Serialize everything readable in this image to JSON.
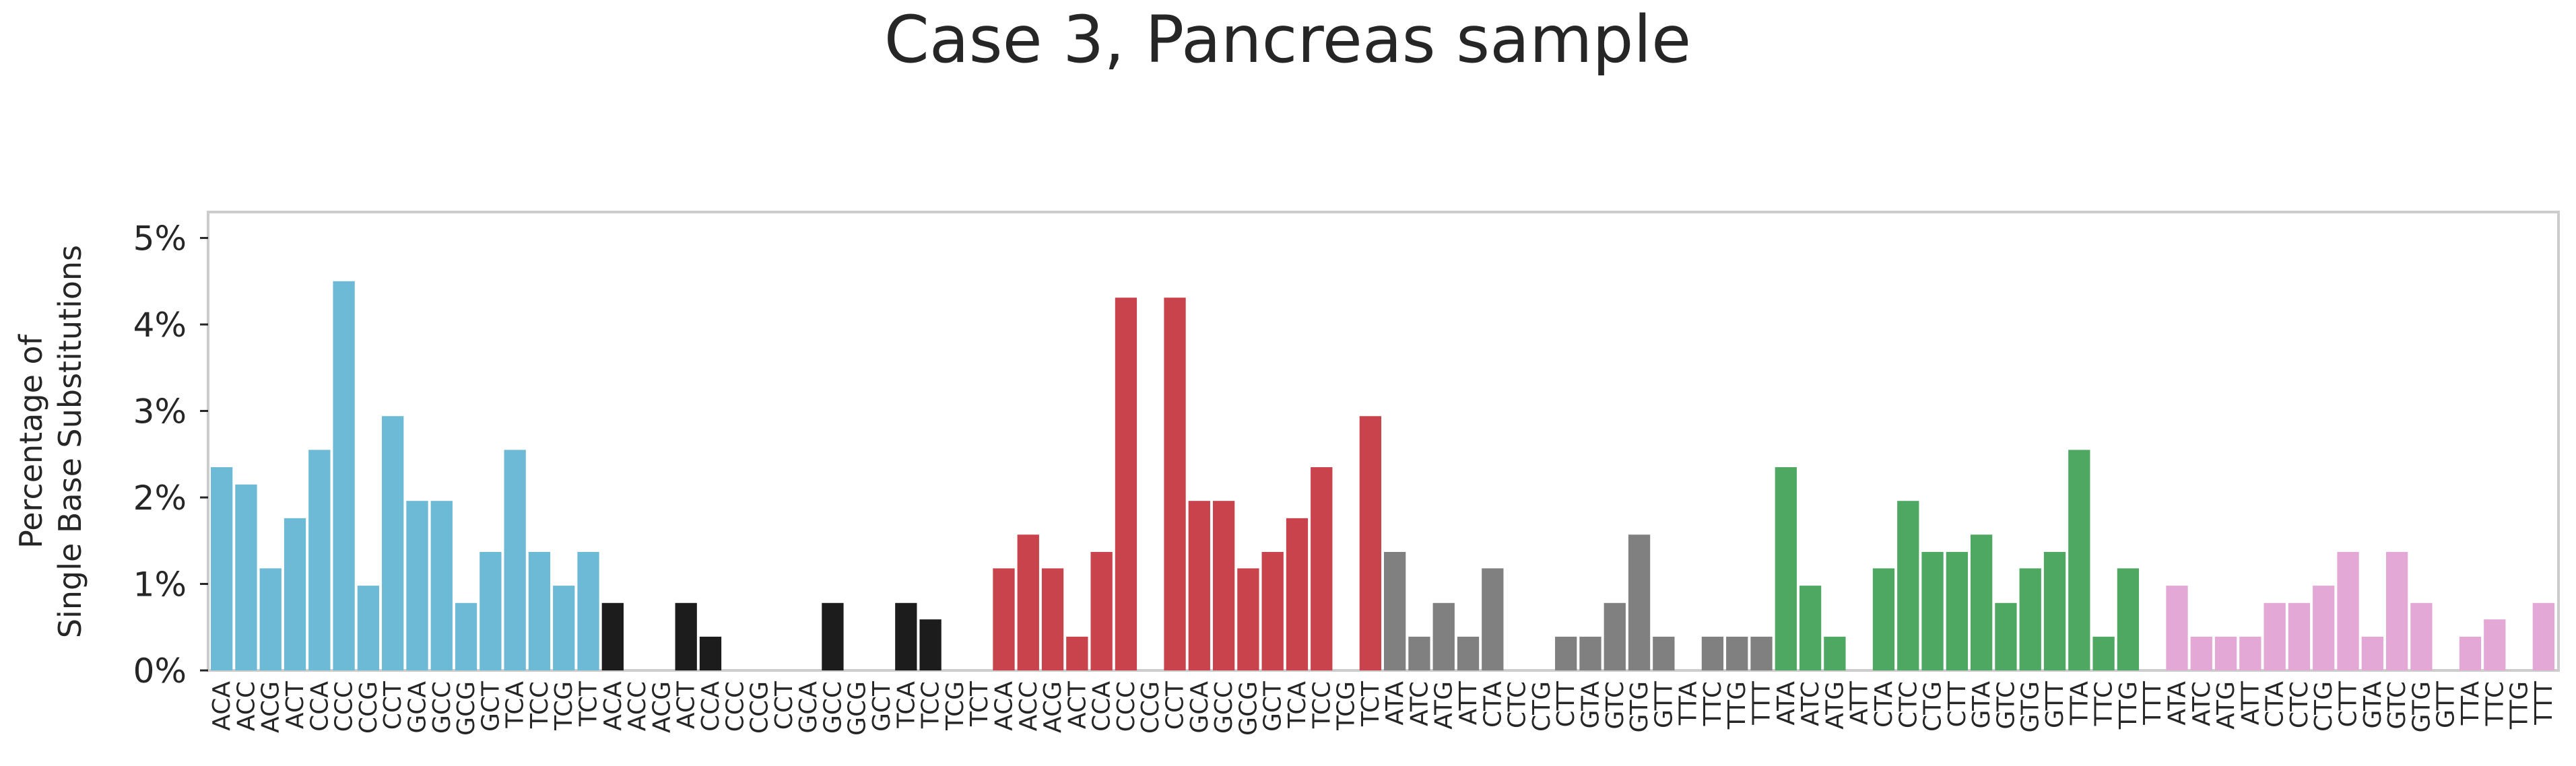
{
  "chart_data": {
    "type": "bar",
    "title": "Case 3, Pancreas sample",
    "xlabel": "",
    "ylabel": [
      "Percentage of",
      "Single Base Substitutions"
    ],
    "ylim": [
      0,
      5.3
    ],
    "yticks": [
      {
        "value": 0,
        "label": "0%"
      },
      {
        "value": 1,
        "label": "1%"
      },
      {
        "value": 2,
        "label": "2%"
      },
      {
        "value": 3,
        "label": "3%"
      },
      {
        "value": 4,
        "label": "4%"
      },
      {
        "value": 5,
        "label": "5%"
      }
    ],
    "grid": false,
    "group_colors": [
      "#6cbad6",
      "#1c1c1c",
      "#c8434b",
      "#808080",
      "#4fa862",
      "#e4a8d6"
    ],
    "categories": [
      "ACA",
      "ACC",
      "ACG",
      "ACT",
      "CCA",
      "CCC",
      "CCG",
      "CCT",
      "GCA",
      "GCC",
      "GCG",
      "GCT",
      "TCA",
      "TCC",
      "TCG",
      "TCT",
      "ACA",
      "ACC",
      "ACG",
      "ACT",
      "CCA",
      "CCC",
      "CCG",
      "CCT",
      "GCA",
      "GCC",
      "GCG",
      "GCT",
      "TCA",
      "TCC",
      "TCG",
      "TCT",
      "ACA",
      "ACC",
      "ACG",
      "ACT",
      "CCA",
      "CCC",
      "CCG",
      "CCT",
      "GCA",
      "GCC",
      "GCG",
      "GCT",
      "TCA",
      "TCC",
      "TCG",
      "TCT",
      "ATA",
      "ATC",
      "ATG",
      "ATT",
      "CTA",
      "CTC",
      "CTG",
      "CTT",
      "GTA",
      "GTC",
      "GTG",
      "GTT",
      "TTA",
      "TTC",
      "TTG",
      "TTT",
      "ATA",
      "ATC",
      "ATG",
      "ATT",
      "CTA",
      "CTC",
      "CTG",
      "CTT",
      "GTA",
      "GTC",
      "GTG",
      "GTT",
      "TTA",
      "TTC",
      "TTG",
      "TTT",
      "ATA",
      "ATC",
      "ATG",
      "ATT",
      "CTA",
      "CTC",
      "CTG",
      "CTT",
      "GTA",
      "GTC",
      "GTG",
      "GTT",
      "TTA",
      "TTC",
      "TTG",
      "TTT"
    ],
    "values": [
      2.35,
      2.15,
      1.18,
      1.76,
      2.55,
      4.5,
      0.98,
      2.94,
      1.96,
      1.96,
      0.78,
      1.37,
      2.55,
      1.37,
      0.98,
      1.37,
      0.78,
      0,
      0,
      0.78,
      0.39,
      0,
      0,
      0,
      0,
      0.78,
      0,
      0,
      0.78,
      0.59,
      0,
      0,
      1.18,
      1.57,
      1.18,
      0.39,
      1.37,
      4.31,
      0,
      4.31,
      1.96,
      1.96,
      1.18,
      1.37,
      1.76,
      2.35,
      0,
      2.94,
      1.37,
      0.39,
      0.78,
      0.39,
      1.18,
      0,
      0,
      0.39,
      0.39,
      0.78,
      1.57,
      0.39,
      0,
      0.39,
      0.39,
      0.39,
      2.35,
      0.98,
      0.39,
      0,
      1.18,
      1.96,
      1.37,
      1.37,
      1.57,
      0.78,
      1.18,
      1.37,
      2.55,
      0.39,
      1.18,
      0,
      0.98,
      0.39,
      0.39,
      0.39,
      0.78,
      0.78,
      0.98,
      1.37,
      0.39,
      1.37,
      0.78,
      0,
      0.39,
      0.59,
      0,
      0.78
    ]
  }
}
